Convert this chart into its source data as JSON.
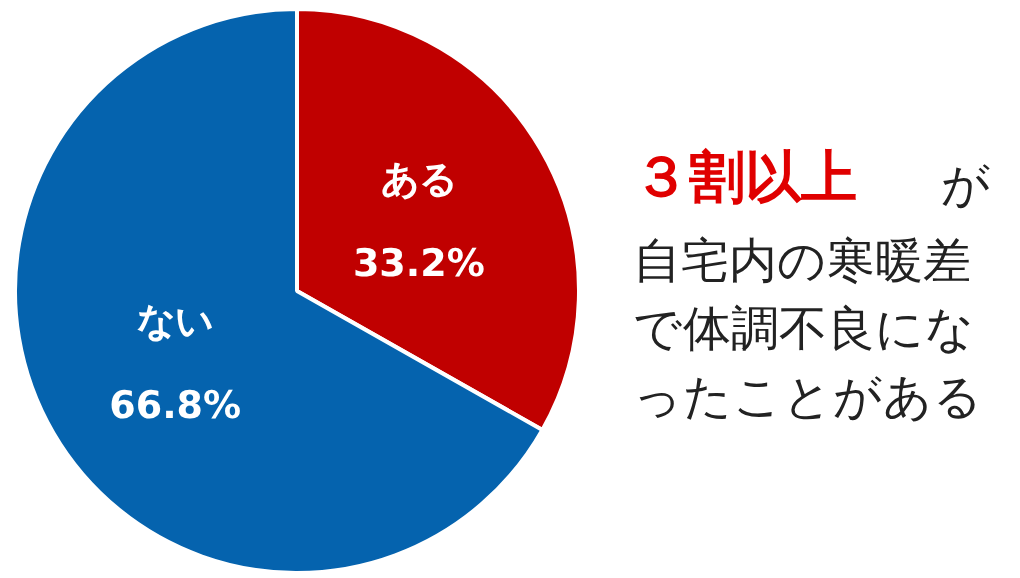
{
  "chart_data": {
    "type": "pie",
    "title": "３割以上",
    "annotations": [
      "が",
      "自宅内の寒暖差",
      "で体調不良にな",
      "ったことがある"
    ],
    "categories": [
      "ある",
      "ない"
    ],
    "values": [
      33.2,
      66.8
    ],
    "colors": [
      "#c00000",
      "#0563ae"
    ],
    "value_labels": [
      "33.2%",
      "66.8%"
    ]
  }
}
